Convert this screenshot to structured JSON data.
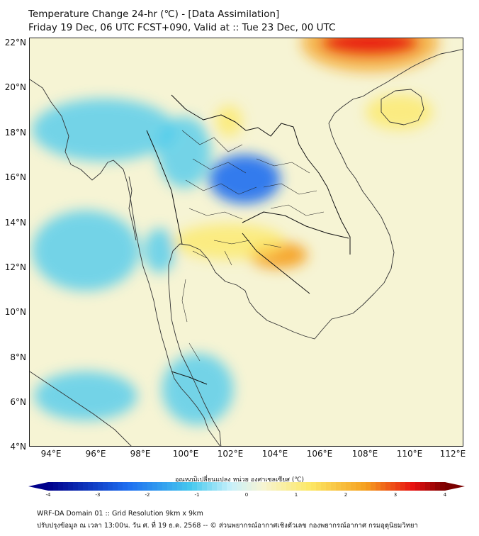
{
  "header": {
    "title_line1": "Temperature Change 24-hr (℃) - [Data Assimilation]",
    "title_line2": "Friday 19 Dec, 06 UTC FCST+090, Valid at :: Tue 23 Dec, 00 UTC"
  },
  "map": {
    "lat_labels": [
      "22°N",
      "20°N",
      "18°N",
      "16°N",
      "14°N",
      "12°N",
      "10°N",
      "8°N",
      "6°N",
      "4°N"
    ],
    "lon_labels": [
      "94°E",
      "96°E",
      "98°E",
      "100°E",
      "102°E",
      "104°E",
      "106°E",
      "108°E",
      "110°E",
      "112°E"
    ],
    "lat_range": [
      4,
      22.3
    ],
    "lon_range": [
      93,
      112.4
    ],
    "background_color": "#f6f4d4",
    "warm_areas": [
      {
        "lon": 108.2,
        "lat": 22.1,
        "rx": 2.2,
        "ry": 0.6,
        "level": "high"
      },
      {
        "lon": 104.1,
        "lat": 12.6,
        "rx": 1.3,
        "ry": 0.6,
        "level": "mid"
      },
      {
        "lon": 101.9,
        "lat": 18.6,
        "rx": 0.6,
        "ry": 0.7,
        "level": "low"
      },
      {
        "lon": 109.5,
        "lat": 19.0,
        "rx": 1.5,
        "ry": 0.8,
        "level": "low"
      },
      {
        "lon": 101.9,
        "lat": 13.2,
        "rx": 2.5,
        "ry": 0.8,
        "level": "low"
      }
    ],
    "cool_areas": [
      {
        "lon": 102.6,
        "lat": 16.0,
        "rx": 1.6,
        "ry": 1.1,
        "level": "mid"
      },
      {
        "lon": 96.3,
        "lat": 18.2,
        "rx": 3.2,
        "ry": 1.4,
        "level": "low"
      },
      {
        "lon": 99.9,
        "lat": 17.2,
        "rx": 1.2,
        "ry": 1.6,
        "level": "low"
      },
      {
        "lon": 95.5,
        "lat": 12.8,
        "rx": 2.4,
        "ry": 1.8,
        "level": "low"
      },
      {
        "lon": 100.5,
        "lat": 6.6,
        "rx": 1.6,
        "ry": 1.6,
        "level": "low"
      },
      {
        "lon": 95.5,
        "lat": 6.3,
        "rx": 2.3,
        "ry": 1.1,
        "level": "low"
      },
      {
        "lon": 98.8,
        "lat": 12.8,
        "rx": 0.7,
        "ry": 1.0,
        "level": "low"
      }
    ]
  },
  "colorbar": {
    "title": "อุณหภูมิเปลี่ยนแปลง หน่วย องศาเซลเซียส (℃)",
    "min": -4,
    "max": 4,
    "ticks": [
      "-4",
      "-3",
      "-2",
      "-1",
      "0",
      "1",
      "2",
      "3",
      "4"
    ]
  },
  "footer": {
    "line1": "WRF-DA Domain 01 :: Grid Resolution 9km x 9km",
    "line2": "ปรับปรุงข้อมูล ณ เวลา 13:00น. วัน ศ. ที่ 19 ธ.ค. 2568 -- © ส่วนพยากรณ์อากาศเชิงตัวเลข กองพยากรณ์อากาศ กรมอุตุนิยมวิทยา"
  },
  "colors": {
    "dark_blue": "#00008b",
    "mid_blue": "#1e6ef0",
    "cyan": "#46c8ee",
    "light_cyan": "#c8f0fa",
    "light_yellow": "#f6f4d4",
    "yellow": "#fce866",
    "orange": "#f5a020",
    "red": "#e81010",
    "dark_red": "#7a0000"
  }
}
